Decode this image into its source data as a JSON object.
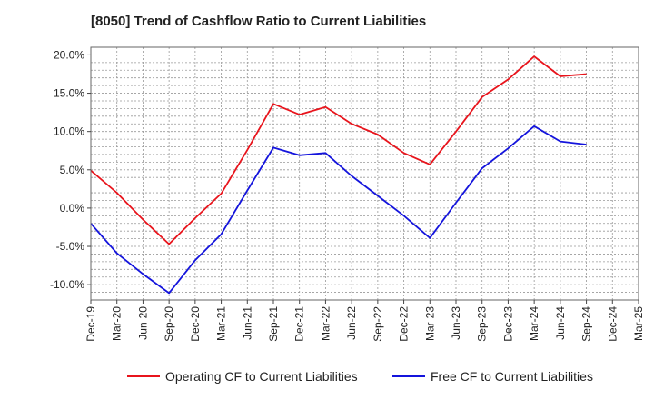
{
  "chart_data": {
    "type": "line",
    "title": "[8050]  Trend of Cashflow Ratio to Current Liabilities",
    "xlabel": "",
    "ylabel": "",
    "x": [
      "Dec-19",
      "Mar-20",
      "Jun-20",
      "Sep-20",
      "Dec-20",
      "Mar-21",
      "Jun-21",
      "Sep-21",
      "Dec-21",
      "Mar-22",
      "Jun-22",
      "Sep-22",
      "Dec-22",
      "Mar-23",
      "Jun-23",
      "Sep-23",
      "Dec-23",
      "Mar-24",
      "Jun-24",
      "Sep-24",
      "Dec-24",
      "Mar-25"
    ],
    "ylim": [
      -12,
      21
    ],
    "yticks": [
      -10,
      -5,
      0,
      5,
      10,
      15,
      20
    ],
    "ytick_labels": [
      "-10.0%",
      "-5.0%",
      "0.0%",
      "5.0%",
      "10.0%",
      "15.0%",
      "20.0%"
    ],
    "grid": true,
    "legend_position": "bottom",
    "series": [
      {
        "name": "Operating CF to Current Liabilities",
        "color": "#e8141c",
        "values": [
          4.9,
          2.0,
          -1.5,
          -4.7,
          -1.3,
          1.9,
          7.6,
          13.6,
          12.2,
          13.2,
          11.0,
          9.6,
          7.2,
          5.7,
          10.0,
          14.5,
          16.8,
          19.8,
          17.2,
          17.5,
          null,
          null
        ]
      },
      {
        "name": "Free CF to Current Liabilities",
        "color": "#1414dc",
        "values": [
          -2.0,
          -5.9,
          -8.6,
          -11.1,
          -6.8,
          -3.4,
          2.3,
          7.9,
          6.9,
          7.2,
          4.2,
          1.6,
          -1.0,
          -3.9,
          0.7,
          5.2,
          7.8,
          10.7,
          8.7,
          8.3,
          null,
          null
        ]
      }
    ]
  }
}
